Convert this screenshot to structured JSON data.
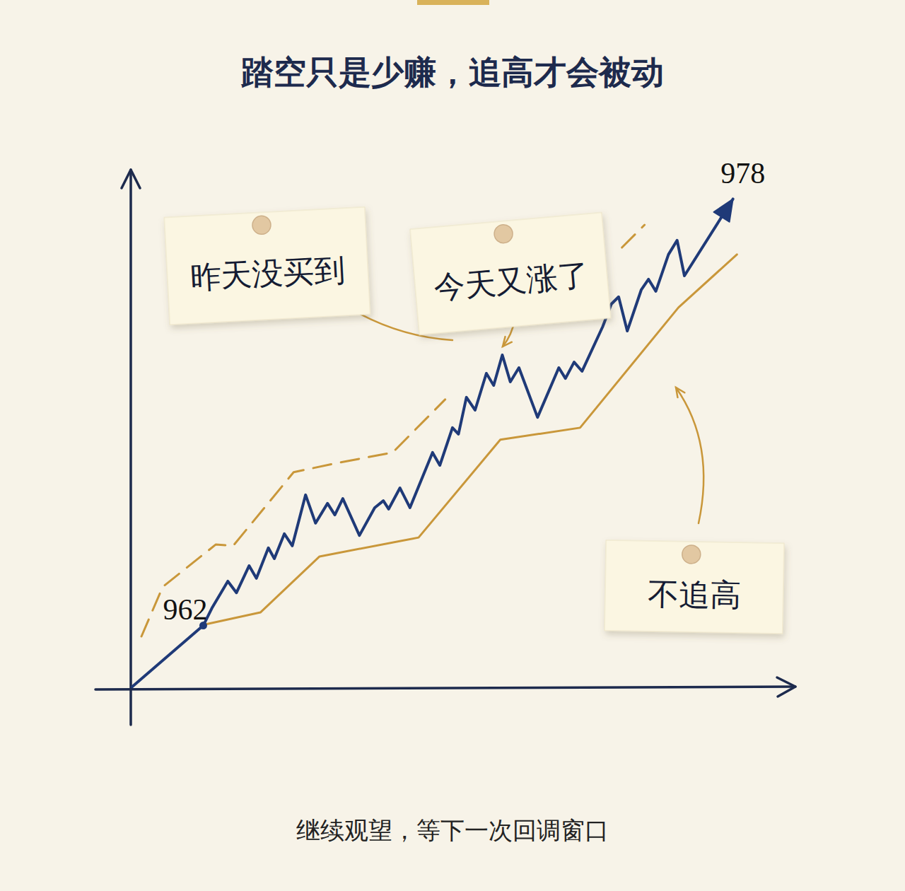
{
  "chart_data": {
    "type": "line",
    "title": "踏空只是少赚，追高才会被动",
    "caption": "继续观望，等下一次回调窗口",
    "xlim": [
      0,
      100
    ],
    "ylim": [
      959.6,
      979.1
    ],
    "tick_labels": false,
    "annotations": [
      {
        "text": "昨天没买到"
      },
      {
        "text": "今天又涨了"
      },
      {
        "text": "不追高"
      }
    ],
    "series": [
      {
        "color": "#1f3a78",
        "line_style": "solid",
        "marker": "arrow",
        "x": [
          0.2,
          10.9,
          12.2,
          14.6,
          15.9,
          17.8,
          18.9,
          20.7,
          21.6,
          23.1,
          24.3,
          26.3,
          27.8,
          29.6,
          30.7,
          31.9,
          34.4,
          36.7,
          38.0,
          38.8,
          40.5,
          42.0,
          45.4,
          46.5,
          48.4,
          49.3,
          50.5,
          51.8,
          53.5,
          54.6,
          55.9,
          57.1,
          58.4,
          61.2,
          64.4,
          65.4,
          66.7,
          67.9,
          71.0,
          72.3,
          73.4,
          74.7,
          76.8,
          77.9,
          79.0,
          80.9,
          82.2,
          83.3,
          90.6
        ],
        "values": [
          959.7,
          962,
          962.65,
          963.66,
          963.23,
          964.24,
          963.77,
          964.91,
          964.51,
          965.44,
          964.99,
          966.9,
          965.84,
          966.58,
          966.15,
          966.76,
          965.38,
          966.42,
          966.68,
          966.37,
          967.16,
          966.42,
          968.49,
          968.01,
          969.42,
          969.18,
          970.56,
          970.08,
          971.46,
          971.01,
          972.15,
          971.14,
          971.67,
          969.81,
          971.67,
          971.27,
          971.88,
          971.54,
          973.21,
          974.06,
          974.33,
          973.05,
          974.59,
          974.99,
          974.54,
          975.92,
          976.45,
          975.12,
          978
        ],
        "value_labels": [
          null,
          "962",
          null,
          null,
          null,
          null,
          null,
          null,
          null,
          null,
          null,
          null,
          null,
          null,
          null,
          null,
          null,
          null,
          null,
          null,
          null,
          null,
          null,
          null,
          null,
          null,
          null,
          null,
          null,
          null,
          null,
          null,
          null,
          null,
          null,
          null,
          null,
          null,
          null,
          null,
          null,
          null,
          null,
          null,
          null,
          null,
          null,
          null,
          "978"
        ]
      },
      {
        "color": "#c9973a",
        "line_style": "solid",
        "x": [
          11.2,
          19.5,
          28.4,
          43.3,
          55.6,
          67.6,
          82.4,
          91.2
        ],
        "values": [
          962.04,
          962.49,
          964.59,
          965.3,
          968.97,
          969.42,
          973.93,
          975.92
        ]
      },
      {
        "color": "#c9973a",
        "line_style": "dashed",
        "x": [
          1.6,
          4.8,
          12.8,
          15.4,
          24.5,
          30.9,
          39.4,
          47.3,
          null,
          73.9,
          77.3
        ],
        "values": [
          961.59,
          963.45,
          965.04,
          964.99,
          967.75,
          968.09,
          968.49,
          970.48,
          null,
          976.18,
          977.03
        ]
      }
    ]
  }
}
